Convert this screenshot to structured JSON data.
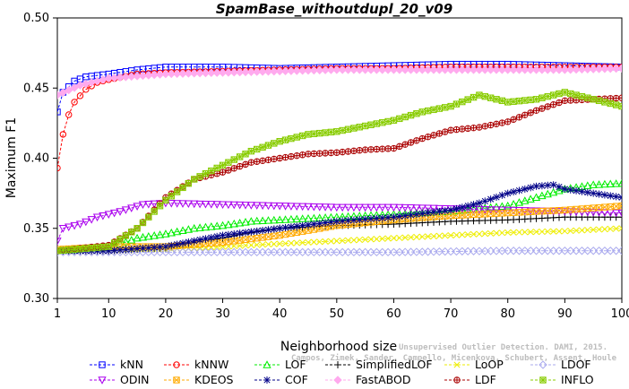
{
  "chart_data": {
    "type": "line",
    "title": "SpamBase_withoutdupl_20_v09",
    "xlabel": "Neighborhood size",
    "ylabel": "Maximum F1",
    "xlim": [
      1,
      100
    ],
    "ylim": [
      0.3,
      0.5
    ],
    "xticks": [
      1,
      10,
      20,
      30,
      40,
      50,
      60,
      70,
      80,
      90,
      100
    ],
    "yticks": [
      0.3,
      0.35,
      0.4,
      0.45,
      0.5
    ],
    "ytick_labels": [
      "0.30",
      "0.35",
      "0.40",
      "0.45",
      "0.50"
    ],
    "watermark": [
      "Unsupervised Outlier Detection. DAMI, 2015.",
      "Campos, Zimek, Sander, Campello, Micenkova, Schubert, Assent, Houle"
    ],
    "series": [
      {
        "name": "kNN",
        "color": "#0000ff",
        "marker": "square",
        "points": [
          [
            1,
            0.433
          ],
          [
            2,
            0.447
          ],
          [
            4,
            0.455
          ],
          [
            6,
            0.458
          ],
          [
            10,
            0.46
          ],
          [
            15,
            0.463
          ],
          [
            20,
            0.465
          ],
          [
            30,
            0.465
          ],
          [
            40,
            0.464
          ],
          [
            50,
            0.465
          ],
          [
            60,
            0.466
          ],
          [
            70,
            0.467
          ],
          [
            80,
            0.467
          ],
          [
            90,
            0.466
          ],
          [
            100,
            0.465
          ]
        ]
      },
      {
        "name": "kNNW",
        "color": "#ff0000",
        "marker": "circle",
        "points": [
          [
            1,
            0.393
          ],
          [
            2,
            0.417
          ],
          [
            3,
            0.431
          ],
          [
            4,
            0.44
          ],
          [
            6,
            0.449
          ],
          [
            8,
            0.454
          ],
          [
            10,
            0.456
          ],
          [
            15,
            0.46
          ],
          [
            20,
            0.461
          ],
          [
            30,
            0.462
          ],
          [
            40,
            0.463
          ],
          [
            50,
            0.464
          ],
          [
            60,
            0.464
          ],
          [
            70,
            0.465
          ],
          [
            80,
            0.465
          ],
          [
            90,
            0.465
          ],
          [
            100,
            0.465
          ]
        ]
      },
      {
        "name": "LOF",
        "color": "#00ee00",
        "marker": "triangle-up",
        "points": [
          [
            1,
            0.334
          ],
          [
            10,
            0.336
          ],
          [
            15,
            0.343
          ],
          [
            20,
            0.346
          ],
          [
            25,
            0.35
          ],
          [
            30,
            0.352
          ],
          [
            35,
            0.355
          ],
          [
            40,
            0.356
          ],
          [
            50,
            0.358
          ],
          [
            60,
            0.36
          ],
          [
            70,
            0.362
          ],
          [
            80,
            0.366
          ],
          [
            85,
            0.372
          ],
          [
            90,
            0.378
          ],
          [
            95,
            0.381
          ],
          [
            100,
            0.382
          ]
        ]
      },
      {
        "name": "SimplifiedLOF",
        "color": "#000000",
        "marker": "plus",
        "points": [
          [
            1,
            0.334
          ],
          [
            10,
            0.334
          ],
          [
            20,
            0.336
          ],
          [
            25,
            0.34
          ],
          [
            30,
            0.343
          ],
          [
            35,
            0.347
          ],
          [
            40,
            0.35
          ],
          [
            50,
            0.352
          ],
          [
            60,
            0.353
          ],
          [
            70,
            0.355
          ],
          [
            80,
            0.356
          ],
          [
            90,
            0.358
          ],
          [
            100,
            0.358
          ]
        ]
      },
      {
        "name": "LoOP",
        "color": "#eeee00",
        "marker": "x",
        "points": [
          [
            1,
            0.334
          ],
          [
            10,
            0.334
          ],
          [
            20,
            0.335
          ],
          [
            30,
            0.337
          ],
          [
            40,
            0.339
          ],
          [
            50,
            0.341
          ],
          [
            60,
            0.343
          ],
          [
            70,
            0.345
          ],
          [
            80,
            0.347
          ],
          [
            90,
            0.348
          ],
          [
            100,
            0.35
          ]
        ]
      },
      {
        "name": "LDOF",
        "color": "#aaaaee",
        "marker": "diamond",
        "points": [
          [
            1,
            0.333
          ],
          [
            20,
            0.333
          ],
          [
            40,
            0.333
          ],
          [
            60,
            0.333
          ],
          [
            80,
            0.334
          ],
          [
            100,
            0.334
          ]
        ]
      },
      {
        "name": "ODIN",
        "color": "#aa00ee",
        "marker": "triangle-down",
        "points": [
          [
            1,
            0.341
          ],
          [
            2,
            0.35
          ],
          [
            5,
            0.353
          ],
          [
            8,
            0.358
          ],
          [
            12,
            0.362
          ],
          [
            16,
            0.367
          ],
          [
            20,
            0.368
          ],
          [
            30,
            0.367
          ],
          [
            40,
            0.366
          ],
          [
            50,
            0.365
          ],
          [
            60,
            0.365
          ],
          [
            70,
            0.364
          ],
          [
            80,
            0.363
          ],
          [
            90,
            0.362
          ],
          [
            100,
            0.361
          ]
        ]
      },
      {
        "name": "KDEOS",
        "color": "#ffaa00",
        "marker": "square-x",
        "points": [
          [
            1,
            0.335
          ],
          [
            10,
            0.337
          ],
          [
            20,
            0.337
          ],
          [
            30,
            0.34
          ],
          [
            40,
            0.345
          ],
          [
            50,
            0.352
          ],
          [
            60,
            0.356
          ],
          [
            70,
            0.359
          ],
          [
            80,
            0.361
          ],
          [
            90,
            0.363
          ],
          [
            100,
            0.366
          ]
        ]
      },
      {
        "name": "COF",
        "color": "#000088",
        "marker": "star",
        "points": [
          [
            1,
            0.334
          ],
          [
            10,
            0.334
          ],
          [
            20,
            0.337
          ],
          [
            30,
            0.345
          ],
          [
            40,
            0.35
          ],
          [
            50,
            0.355
          ],
          [
            60,
            0.358
          ],
          [
            70,
            0.363
          ],
          [
            75,
            0.368
          ],
          [
            80,
            0.375
          ],
          [
            85,
            0.38
          ],
          [
            88,
            0.381
          ],
          [
            90,
            0.378
          ],
          [
            95,
            0.375
          ],
          [
            100,
            0.372
          ]
        ]
      },
      {
        "name": "FastABOD",
        "color": "#ffaaee",
        "marker": "diamond-filled",
        "points": [
          [
            1,
            0.445
          ],
          [
            5,
            0.452
          ],
          [
            10,
            0.457
          ],
          [
            20,
            0.46
          ],
          [
            30,
            0.461
          ],
          [
            40,
            0.462
          ],
          [
            50,
            0.463
          ],
          [
            60,
            0.463
          ],
          [
            70,
            0.463
          ],
          [
            80,
            0.463
          ],
          [
            90,
            0.463
          ],
          [
            100,
            0.464
          ]
        ]
      },
      {
        "name": "LDF",
        "color": "#aa0000",
        "marker": "circle-plus",
        "points": [
          [
            1,
            0.334
          ],
          [
            10,
            0.338
          ],
          [
            15,
            0.35
          ],
          [
            20,
            0.372
          ],
          [
            25,
            0.385
          ],
          [
            30,
            0.39
          ],
          [
            35,
            0.397
          ],
          [
            40,
            0.4
          ],
          [
            45,
            0.403
          ],
          [
            50,
            0.404
          ],
          [
            55,
            0.406
          ],
          [
            60,
            0.407
          ],
          [
            65,
            0.414
          ],
          [
            70,
            0.42
          ],
          [
            75,
            0.422
          ],
          [
            80,
            0.426
          ],
          [
            85,
            0.434
          ],
          [
            90,
            0.441
          ],
          [
            95,
            0.442
          ],
          [
            100,
            0.443
          ]
        ]
      },
      {
        "name": "INFLO",
        "color": "#88cc00",
        "marker": "square-star",
        "points": [
          [
            1,
            0.334
          ],
          [
            10,
            0.337
          ],
          [
            15,
            0.35
          ],
          [
            20,
            0.37
          ],
          [
            25,
            0.385
          ],
          [
            30,
            0.395
          ],
          [
            35,
            0.405
          ],
          [
            40,
            0.412
          ],
          [
            45,
            0.417
          ],
          [
            50,
            0.419
          ],
          [
            55,
            0.423
          ],
          [
            60,
            0.427
          ],
          [
            65,
            0.433
          ],
          [
            70,
            0.437
          ],
          [
            75,
            0.445
          ],
          [
            80,
            0.44
          ],
          [
            85,
            0.442
          ],
          [
            90,
            0.447
          ],
          [
            95,
            0.442
          ],
          [
            100,
            0.437
          ]
        ]
      }
    ],
    "legend_rows": [
      [
        "kNN",
        "kNNW",
        "LOF",
        "SimplifiedLOF",
        "LoOP",
        "LDOF"
      ],
      [
        "ODIN",
        "KDEOS",
        "COF",
        "FastABOD",
        "LDF",
        "INFLO"
      ]
    ]
  }
}
